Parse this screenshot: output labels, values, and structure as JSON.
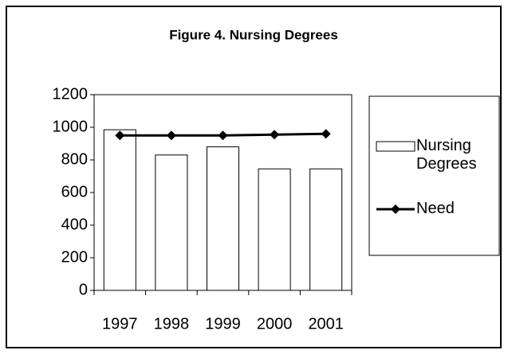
{
  "chart_data": {
    "type": "bar_line",
    "title": "Figure 4.  Nursing Degrees",
    "categories": [
      "1997",
      "1998",
      "1999",
      "2000",
      "2001"
    ],
    "series": [
      {
        "name": "Nursing Degrees",
        "type": "bar",
        "color": "#ffffff",
        "values": [
          985,
          830,
          880,
          745,
          745
        ]
      },
      {
        "name": "Need",
        "type": "line",
        "color": "#000000",
        "values": [
          950,
          950,
          950,
          955,
          960
        ]
      }
    ],
    "ylim": [
      0,
      1200
    ],
    "yticks": [
      0,
      200,
      400,
      600,
      800,
      1000,
      1200
    ],
    "legend": "right"
  }
}
